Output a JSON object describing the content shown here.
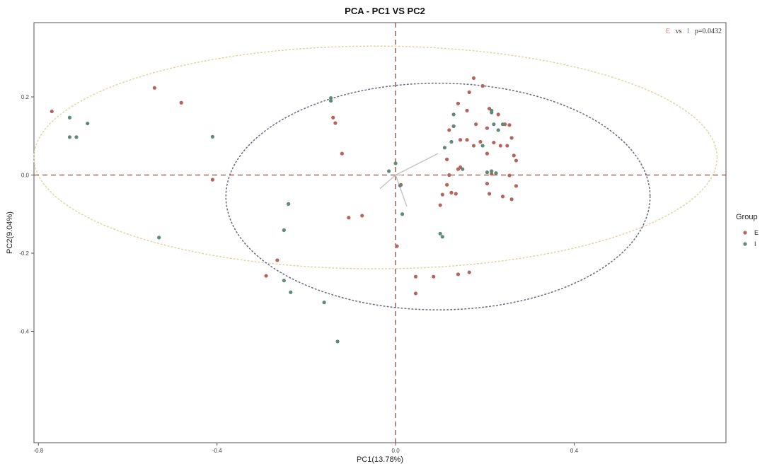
{
  "chart_data": {
    "type": "scatter",
    "title": "PCA - PC1 VS PC2",
    "xlabel": "PC1(13.78%)",
    "ylabel": "PC2(9.04%)",
    "xlim": [
      -0.81,
      0.74
    ],
    "ylim": [
      -0.685,
      0.39
    ],
    "xticks": [
      -0.8,
      -0.4,
      0.0,
      0.4
    ],
    "xtick_labels": [
      "-0.8",
      "-0.4",
      "0.0",
      "0.4"
    ],
    "yticks": [
      0.2,
      0.0,
      -0.2,
      -0.4
    ],
    "ytick_labels": [
      "0.2",
      "0.0",
      "-0.2",
      "-0.4"
    ],
    "grid": false,
    "legend": {
      "title": "Group",
      "placement": "right",
      "items": [
        {
          "label": "E",
          "color": "#b5655e"
        },
        {
          "label": "I",
          "color": "#5f8a74"
        }
      ]
    },
    "annotation": {
      "text_a": "E",
      "text_vs": "vs",
      "text_b": "I",
      "text_p": "p=0.0432",
      "color_a": "#c08080",
      "color_b": "#7a87b8"
    },
    "reference_lines": {
      "x": 0,
      "y": 0,
      "color": "#8a4a44"
    },
    "ellipses": [
      {
        "group": "E",
        "center": [
          -0.045,
          0.045
        ],
        "rx": 0.765,
        "ry": 0.285,
        "color": "#ddd7a6"
      },
      {
        "group": "I",
        "center": [
          0.095,
          -0.055
        ],
        "rx": 0.475,
        "ry": 0.29,
        "color": "#6a6f86"
      }
    ],
    "loadings": [
      {
        "x": 0.095,
        "y": 0.055
      },
      {
        "x": -0.035,
        "y": -0.035
      },
      {
        "x": 0.025,
        "y": -0.08
      },
      {
        "x": 0.015,
        "y": 0.0
      }
    ],
    "loading_color": "#c9c0c0",
    "series": [
      {
        "name": "E",
        "color": "#b5655e",
        "points": [
          [
            -0.77,
            0.163
          ],
          [
            -0.54,
            0.223
          ],
          [
            -0.48,
            0.185
          ],
          [
            -0.41,
            -0.012
          ],
          [
            -0.14,
            0.147
          ],
          [
            -0.135,
            0.133
          ],
          [
            -0.12,
            0.055
          ],
          [
            -0.105,
            -0.109
          ],
          [
            -0.075,
            -0.104
          ],
          [
            -0.29,
            -0.258
          ],
          [
            -0.265,
            -0.218
          ],
          [
            0.003,
            -0.182
          ],
          [
            0.045,
            -0.26
          ],
          [
            0.045,
            -0.303
          ],
          [
            0.085,
            -0.26
          ],
          [
            0.14,
            -0.254
          ],
          [
            0.165,
            -0.249
          ],
          [
            0.175,
            0.248
          ],
          [
            0.14,
            0.183
          ],
          [
            0.145,
            0.09
          ],
          [
            0.16,
            0.165
          ],
          [
            0.195,
            0.228
          ],
          [
            0.165,
            0.212
          ],
          [
            0.21,
            0.17
          ],
          [
            0.18,
            0.13
          ],
          [
            0.205,
            0.12
          ],
          [
            0.23,
            0.155
          ],
          [
            0.245,
            0.13
          ],
          [
            0.255,
            0.128
          ],
          [
            0.22,
            0.083
          ],
          [
            0.235,
            0.075
          ],
          [
            0.25,
            0.075
          ],
          [
            0.26,
            0.095
          ],
          [
            0.19,
            0.085
          ],
          [
            0.205,
            0.055
          ],
          [
            0.12,
            0.115
          ],
          [
            0.13,
            0.125
          ],
          [
            0.16,
            0.09
          ],
          [
            0.175,
            0.075
          ],
          [
            0.14,
            0.015
          ],
          [
            0.145,
            0.02
          ],
          [
            0.115,
            0.04
          ],
          [
            0.12,
            0.0
          ],
          [
            0.115,
            -0.025
          ],
          [
            0.125,
            -0.045
          ],
          [
            0.135,
            -0.048
          ],
          [
            0.105,
            -0.05
          ],
          [
            0.1,
            -0.077
          ],
          [
            0.205,
            -0.022
          ],
          [
            0.21,
            -0.048
          ],
          [
            0.24,
            -0.055
          ],
          [
            0.26,
            -0.062
          ],
          [
            0.27,
            -0.028
          ],
          [
            0.255,
            -0.001
          ],
          [
            0.27,
            0.037
          ],
          [
            0.265,
            0.05
          ],
          [
            0.215,
            0.003
          ],
          [
            0.012,
            -0.025
          ]
        ]
      },
      {
        "name": "I",
        "color": "#5f8a74",
        "points": [
          [
            -0.73,
            0.147
          ],
          [
            -0.73,
            0.097
          ],
          [
            -0.715,
            0.097
          ],
          [
            -0.69,
            0.132
          ],
          [
            -0.41,
            0.098
          ],
          [
            -0.53,
            -0.16
          ],
          [
            -0.145,
            0.197
          ],
          [
            -0.145,
            0.19
          ],
          [
            -0.24,
            -0.074
          ],
          [
            -0.25,
            -0.141
          ],
          [
            -0.25,
            -0.27
          ],
          [
            -0.235,
            -0.3
          ],
          [
            -0.16,
            -0.326
          ],
          [
            -0.13,
            -0.426
          ],
          [
            0.0,
            0.03
          ],
          [
            0.01,
            -0.027
          ],
          [
            -0.015,
            0.01
          ],
          [
            0.11,
            0.07
          ],
          [
            0.125,
            0.085
          ],
          [
            0.13,
            0.125
          ],
          [
            0.13,
            0.155
          ],
          [
            0.195,
            0.075
          ],
          [
            0.23,
            0.115
          ],
          [
            0.215,
            0.16
          ],
          [
            0.215,
            0.165
          ],
          [
            0.24,
            0.13
          ],
          [
            0.22,
            0.13
          ],
          [
            0.205,
            0.007
          ],
          [
            0.215,
            0.01
          ],
          [
            0.225,
            0.005
          ],
          [
            0.15,
            0.015
          ],
          [
            0.1,
            -0.15
          ],
          [
            0.105,
            -0.158
          ],
          [
            0.015,
            -0.1
          ]
        ]
      }
    ]
  }
}
